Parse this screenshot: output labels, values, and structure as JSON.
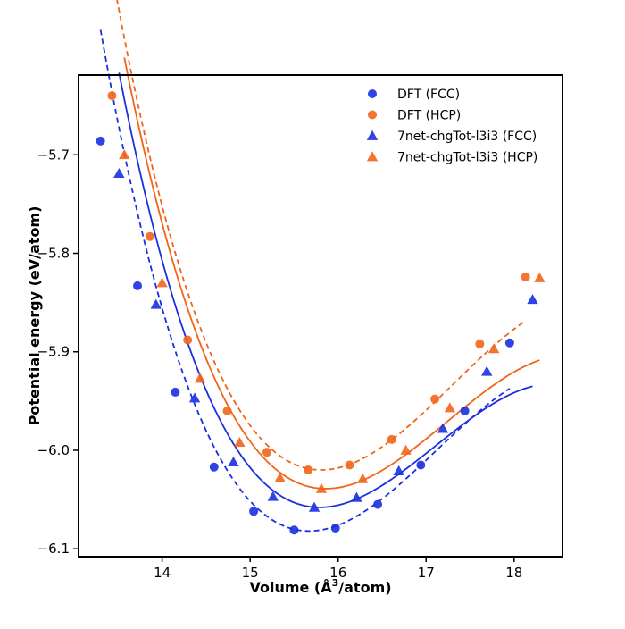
{
  "chart_data": {
    "type": "scatter",
    "title": "",
    "xlabel_main": "Volume (Å",
    "xlabel_sup": "3",
    "xlabel_tail": "/atom)",
    "ylabel": "Potential energy (eV/atom)",
    "xlim": [
      13.05,
      18.55
    ],
    "ylim": [
      -6.108,
      -5.619
    ],
    "xticks": [
      14,
      15,
      16,
      17,
      18
    ],
    "xtick_labels": [
      "14",
      "15",
      "16",
      "17",
      "18"
    ],
    "yticks": [
      -6.1,
      -6.0,
      -5.9,
      -5.8,
      -5.7
    ],
    "ytick_labels": [
      "−6.1",
      "−6.0",
      "−5.9",
      "−5.8",
      "−5.7"
    ],
    "grid": false,
    "legend_position": "top-right",
    "colors": {
      "fcc": "#1a2fe0",
      "hcp": "#f26419"
    },
    "series": [
      {
        "name": "DFT (FCC)",
        "marker": "circle",
        "color": "#1a2fe0",
        "x": [
          13.3,
          13.72,
          14.15,
          14.59,
          15.04,
          15.5,
          15.97,
          16.45,
          16.94,
          17.44,
          17.95
        ],
        "y": [
          -5.686,
          -5.833,
          -5.941,
          -6.017,
          -6.062,
          -6.081,
          -6.079,
          -6.055,
          -6.015,
          -5.96,
          -5.891
        ]
      },
      {
        "name": "DFT (HCP)",
        "marker": "circle",
        "color": "#f26419",
        "x": [
          13.43,
          13.86,
          14.29,
          14.74,
          15.19,
          15.66,
          16.13,
          16.61,
          17.1,
          17.61,
          18.13
        ],
        "y": [
          -5.64,
          -5.783,
          -5.888,
          -5.96,
          -6.002,
          -6.02,
          -6.015,
          -5.989,
          -5.948,
          -5.892,
          -5.824
        ]
      },
      {
        "name": "7net-chgTot-l3i3 (FCC)",
        "marker": "triangle",
        "color": "#1a2fe0",
        "x": [
          13.51,
          13.93,
          14.37,
          14.81,
          15.26,
          15.73,
          16.21,
          16.69,
          17.19,
          17.69,
          18.21
        ],
        "y": [
          -5.719,
          -5.852,
          -5.947,
          -6.012,
          -6.047,
          -6.058,
          -6.048,
          -6.021,
          -5.978,
          -5.92,
          -5.847
        ]
      },
      {
        "name": "7net-chgTot-l3i3 (HCP)",
        "marker": "triangle",
        "color": "#f26419",
        "x": [
          13.57,
          14.0,
          14.43,
          14.88,
          15.34,
          15.81,
          16.28,
          16.77,
          17.27,
          17.77,
          18.29
        ],
        "y": [
          -5.7,
          -5.83,
          -5.927,
          -5.992,
          -6.028,
          -6.039,
          -6.029,
          -6.0,
          -5.957,
          -5.897,
          -5.825
        ]
      }
    ],
    "fits": [
      {
        "of": "DFT (FCC)",
        "style": "dashed",
        "color": "#1a2fe0",
        "x0": 13.3,
        "x1": 17.95,
        "V0": 15.67,
        "E0": -6.082,
        "c2": 0.0586,
        "c3": -0.0135
      },
      {
        "of": "DFT (HCP)",
        "style": "dashed",
        "color": "#f26419",
        "x0": 13.43,
        "x1": 18.13,
        "V0": 15.81,
        "E0": -6.02,
        "c2": 0.0583,
        "c3": -0.013
      },
      {
        "of": "7net-chgTot-l3i3 (FCC)",
        "style": "solid",
        "color": "#1a2fe0",
        "x0": 13.51,
        "x1": 18.21,
        "V0": 15.79,
        "E0": -6.058,
        "c2": 0.0539,
        "c3": -0.0136
      },
      {
        "of": "7net-chgTot-l3i3 (HCP)",
        "style": "solid",
        "color": "#f26419",
        "x0": 13.57,
        "x1": 18.29,
        "V0": 15.86,
        "E0": -6.039,
        "c2": 0.0537,
        "c3": -0.013
      }
    ]
  }
}
